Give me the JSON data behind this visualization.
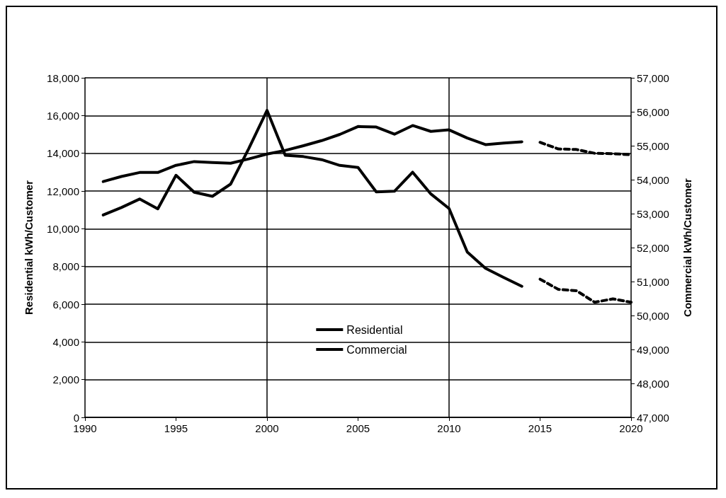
{
  "chart_data": {
    "type": "line",
    "ylabel": "Residential kWh/Customer",
    "y2label": "Commercial kWh/Customer",
    "xlim": [
      1990,
      2020
    ],
    "xticks": [
      1990,
      1995,
      2000,
      2005,
      2010,
      2015,
      2020
    ],
    "ylim": [
      0,
      18000
    ],
    "yticks": [
      0,
      {
        "value": 2000,
        "label": "2,000"
      },
      {
        "value": 4000,
        "label": "4,000"
      },
      {
        "value": 6000,
        "label": "6,000"
      },
      {
        "value": 8000,
        "label": "8,000"
      },
      {
        "value": 10000,
        "label": "10,000"
      },
      {
        "value": 12000,
        "label": "12,000"
      },
      {
        "value": 14000,
        "label": "14,000"
      },
      {
        "value": 16000,
        "label": "16,000"
      },
      {
        "value": 18000,
        "label": "18,000"
      }
    ],
    "y2lim": [
      47000,
      57000
    ],
    "y2ticks": [
      {
        "value": 47000,
        "label": "47,000"
      },
      {
        "value": 48000,
        "label": "48,000"
      },
      {
        "value": 49000,
        "label": "49,000"
      },
      {
        "value": 50000,
        "label": "50,000"
      },
      {
        "value": 51000,
        "label": "51,000"
      },
      {
        "value": 52000,
        "label": "52,000"
      },
      {
        "value": 53000,
        "label": "53,000"
      },
      {
        "value": 54000,
        "label": "54,000"
      },
      {
        "value": 55000,
        "label": "55,000"
      },
      {
        "value": 56000,
        "label": "56,000"
      },
      {
        "value": 57000,
        "label": "57,000"
      }
    ],
    "grid": "y",
    "legend": "bottom",
    "marker": "none",
    "ref_lines": [
      {
        "axis": "x",
        "value": 2000,
        "color": "#000000"
      },
      {
        "axis": "x",
        "value": 2010,
        "color": "#000000"
      }
    ],
    "series": [
      {
        "name": "Residential",
        "color": "#000000",
        "line_style": "solid",
        "x": [
          1991,
          1992,
          1993,
          1994,
          1995,
          1996,
          1997,
          1998,
          1999,
          2000,
          2001,
          2002,
          2003,
          2004,
          2005,
          2006,
          2007,
          2008,
          2009,
          2010,
          2011,
          2012,
          2013,
          2014
        ],
        "values": [
          12500,
          12770,
          12980,
          12980,
          13360,
          13560,
          13510,
          13470,
          13700,
          13960,
          14150,
          14400,
          14670,
          15000,
          15420,
          15390,
          15010,
          15470,
          15160,
          15240,
          14810,
          14460,
          14540,
          14610
        ]
      },
      {
        "color": "#000000",
        "line_style": "dashed",
        "x": [
          2015,
          2016,
          2017,
          2018,
          2019,
          2020
        ],
        "values": [
          14580,
          14230,
          14200,
          14000,
          13980,
          13920
        ]
      },
      {
        "name": "Commercial",
        "color": "#000000",
        "line_style": "solid",
        "axis": "y2",
        "x": [
          1991,
          1992,
          1993,
          1994,
          1995,
          1996,
          1997,
          1998,
          1999,
          2000,
          2001,
          2002,
          2003,
          2004,
          2005,
          2006,
          2007,
          2008,
          2009,
          2010,
          2011,
          2012,
          2013,
          2014
        ],
        "values": [
          52960,
          53180,
          53430,
          53140,
          54130,
          53630,
          53510,
          53870,
          54920,
          56040,
          54720,
          54680,
          54590,
          54420,
          54360,
          53640,
          53660,
          54220,
          53580,
          53150,
          51870,
          51390,
          51120,
          50860
        ]
      },
      {
        "color": "#000000",
        "line_style": "dashed",
        "axis": "y2",
        "x": [
          2015,
          2016,
          2017,
          2018,
          2019,
          2020
        ],
        "values": [
          51070,
          50770,
          50730,
          50390,
          50490,
          50390
        ]
      }
    ]
  }
}
